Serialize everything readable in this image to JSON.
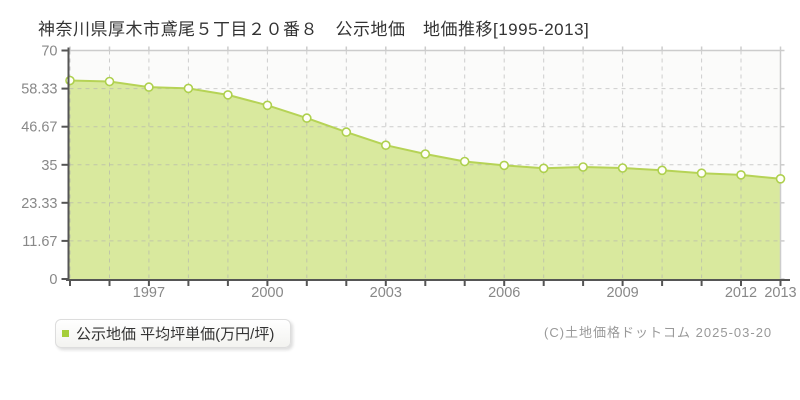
{
  "title": "神奈川県厚木市鳶尾５丁目２０番８　公示地価　地価推移[1995-2013]",
  "legend": {
    "label": "公示地価 平均坪単価(万円/坪)",
    "swatch_color": "#a5ce39"
  },
  "footer": {
    "copyright": "(C)土地価格ドットコム 2025-03-20"
  },
  "chart_data": {
    "type": "area",
    "title": "神奈川県厚木市鳶尾５丁目２０番８ 公示地価 地価推移[1995-2013]",
    "x": [
      1995,
      1996,
      1997,
      1998,
      1999,
      2000,
      2001,
      2002,
      2003,
      2004,
      2005,
      2006,
      2007,
      2008,
      2009,
      2010,
      2011,
      2012,
      2013
    ],
    "series": [
      {
        "name": "公示地価 平均坪単価(万円/坪)",
        "values": [
          60.8,
          60.5,
          58.8,
          58.4,
          56.4,
          53.2,
          49.3,
          45.0,
          41.0,
          38.3,
          36.0,
          34.8,
          33.9,
          34.3,
          34.0,
          33.3,
          32.4,
          31.9,
          30.7
        ]
      }
    ],
    "xlabel": "",
    "ylabel": "",
    "ylim": [
      0,
      70
    ],
    "y_ticks": [
      0,
      11.67,
      23.33,
      35,
      46.67,
      58.33,
      70
    ],
    "y_tick_labels": [
      "0",
      "11.67",
      "23.33",
      "35",
      "46.67",
      "58.33",
      "70"
    ],
    "x_tick_labels": [
      "1997",
      "2000",
      "2003",
      "2006",
      "2009",
      "2012",
      "2013"
    ],
    "grid": "dashed-both-axes",
    "legend_position": "bottom-left",
    "colors": {
      "fill": "#d9e99e",
      "line": "#b6d356",
      "marker_fill": "#fffef8",
      "marker_stroke": "#aed04e",
      "grid": "#b0b0b0",
      "axis": "#555555",
      "frame": "#cccccc",
      "tick_text": "#888888",
      "plot_bg": "#fbfbfa"
    }
  }
}
